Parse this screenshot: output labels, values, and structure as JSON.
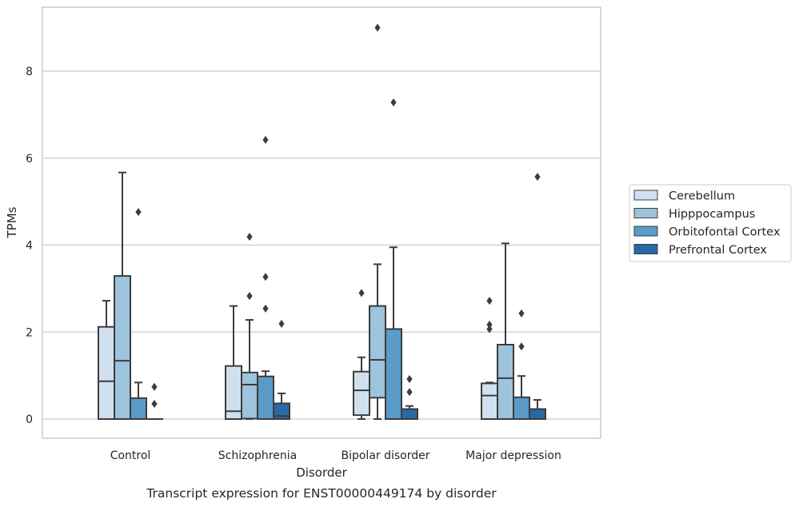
{
  "chart_data": {
    "type": "box",
    "title": "",
    "caption": "Transcript expression for ENST00000449174 by disorder",
    "xlabel": "Disorder",
    "ylabel": "TPMs",
    "ylim": [
      -0.45,
      9.55
    ],
    "yticks": [
      0,
      2,
      4,
      6,
      8
    ],
    "grid": "horizontal",
    "legend_position": "right",
    "categories": [
      "Control",
      "Schizophrenia",
      "Bipolar disorder",
      "Major depression"
    ],
    "series": [
      {
        "name": "Cerebellum",
        "color": "#d1e0ef",
        "boxes": [
          {
            "whisker_low": 0,
            "q1": 0,
            "median": 0.87,
            "q3": 2.12,
            "whisker_high": 2.72,
            "outliers": []
          },
          {
            "whisker_low": 0,
            "q1": 0,
            "median": 0.18,
            "q3": 1.22,
            "whisker_high": 2.6,
            "outliers": []
          },
          {
            "whisker_low": 0,
            "q1": 0.09,
            "median": 0.66,
            "q3": 1.09,
            "whisker_high": 1.42,
            "outliers": [
              2.9
            ]
          },
          {
            "whisker_low": 0,
            "q1": 0,
            "median": 0.54,
            "q3": 0.82,
            "whisker_high": 0.84,
            "outliers": [
              2.72,
              2.17,
              2.07
            ]
          }
        ]
      },
      {
        "name": "Hipppocampus",
        "color": "#9dc3dd",
        "boxes": [
          {
            "whisker_low": 0,
            "q1": 0,
            "median": 1.34,
            "q3": 3.29,
            "whisker_high": 5.67,
            "outliers": []
          },
          {
            "whisker_low": 0,
            "q1": 0.01,
            "median": 0.79,
            "q3": 1.07,
            "whisker_high": 2.28,
            "outliers": [
              4.19,
              2.83
            ]
          },
          {
            "whisker_low": 0,
            "q1": 0.49,
            "median": 1.36,
            "q3": 2.6,
            "whisker_high": 3.56,
            "outliers": [
              9.0
            ]
          },
          {
            "whisker_low": 0,
            "q1": 0,
            "median": 0.94,
            "q3": 1.71,
            "whisker_high": 4.04,
            "outliers": []
          }
        ]
      },
      {
        "name": "Orbitofontal Cortex",
        "color": "#5a9bc9",
        "boxes": [
          {
            "whisker_low": 0,
            "q1": 0,
            "median": 0,
            "q3": 0.48,
            "whisker_high": 0.84,
            "outliers": [
              4.76
            ]
          },
          {
            "whisker_low": 0,
            "q1": 0,
            "median": 0,
            "q3": 0.98,
            "whisker_high": 1.1,
            "outliers": [
              6.42,
              3.27,
              2.54
            ]
          },
          {
            "whisker_low": 0,
            "q1": 0,
            "median": 0,
            "q3": 2.07,
            "whisker_high": 3.95,
            "outliers": [
              7.28
            ]
          },
          {
            "whisker_low": 0,
            "q1": 0,
            "median": 0,
            "q3": 0.5,
            "whisker_high": 0.99,
            "outliers": [
              2.43,
              1.67
            ]
          }
        ]
      },
      {
        "name": "Prefrontal Cortex",
        "color": "#2a68a6",
        "boxes": [
          {
            "whisker_low": 0,
            "q1": 0,
            "median": 0,
            "q3": 0,
            "whisker_high": 0,
            "outliers": [
              0.74,
              0.35
            ]
          },
          {
            "whisker_low": 0,
            "q1": 0,
            "median": 0.07,
            "q3": 0.36,
            "whisker_high": 0.59,
            "outliers": [
              2.19
            ]
          },
          {
            "whisker_low": 0,
            "q1": 0,
            "median": 0,
            "q3": 0.23,
            "whisker_high": 0.3,
            "outliers": [
              0.92,
              0.62
            ]
          },
          {
            "whisker_low": 0,
            "q1": 0,
            "median": 0,
            "q3": 0.23,
            "whisker_high": 0.44,
            "outliers": [
              5.57
            ]
          }
        ]
      }
    ]
  },
  "style": {
    "grid_color": "#cccccc",
    "frame_color": "#cccccc",
    "line_color": "#3c3c3c",
    "text_color": "#262626"
  }
}
